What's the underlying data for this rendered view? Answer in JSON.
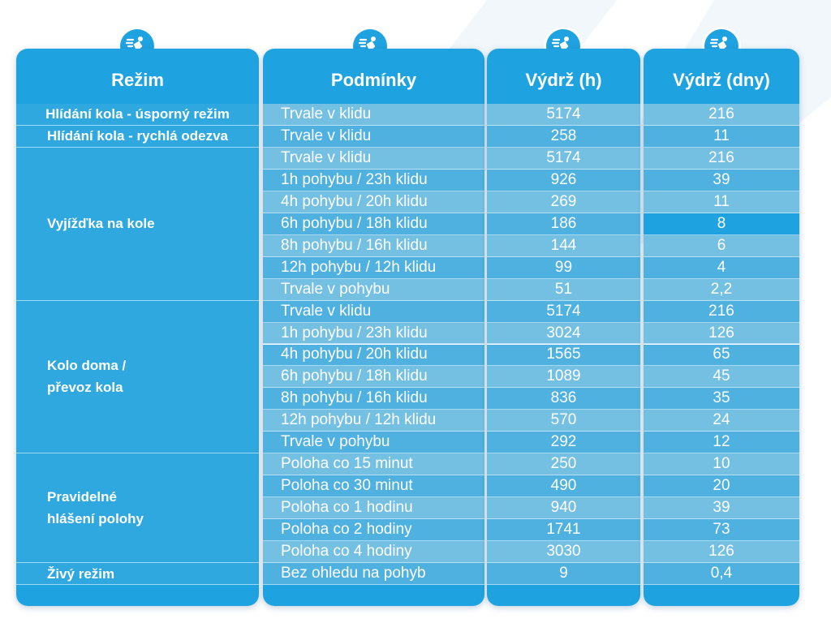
{
  "headers": {
    "mode": "Režim",
    "conditions": "Podmínky",
    "endurance_hours": "Výdrž (h)",
    "endurance_days": "Výdrž (dny)"
  },
  "header_icon": "bike-rider-icon",
  "colors": {
    "header_blue": "#1fa3e0",
    "row_light": "#74c0e3",
    "row_mid": "#4fb1df",
    "mode_cell": "#2ea8df"
  },
  "modes": [
    {
      "lines": [
        "Hlídání kola - úsporný režim"
      ],
      "rows": 1,
      "align": "center"
    },
    {
      "lines": [
        "Hlídání kola - rychlá odezva"
      ],
      "rows": 1,
      "align": "center"
    },
    {
      "lines": [
        "Vyjížďka na kole"
      ],
      "rows": 7,
      "align": "left"
    },
    {
      "lines": [
        "Kolo doma /",
        "převoz kola"
      ],
      "rows": 7,
      "align": "left"
    },
    {
      "lines": [
        "Pravidelné",
        "hlášení polohy"
      ],
      "rows": 5,
      "align": "left"
    },
    {
      "lines": [
        "Živý režim"
      ],
      "rows": 1,
      "align": "left"
    }
  ],
  "rows": [
    {
      "condition": "Trvale v klidu",
      "hours": "5174",
      "days": "216"
    },
    {
      "condition": "Trvale v klidu",
      "hours": "258",
      "days": "11"
    },
    {
      "condition": "Trvale v klidu",
      "hours": "5174",
      "days": "216"
    },
    {
      "condition": "1h pohybu / 23h klidu",
      "hours": "926",
      "days": "39"
    },
    {
      "condition": "4h pohybu / 20h klidu",
      "hours": "269",
      "days": "11"
    },
    {
      "condition": "6h pohybu / 18h klidu",
      "hours": "186",
      "days": "8",
      "highlight_days": true
    },
    {
      "condition": "8h pohybu / 16h klidu",
      "hours": "144",
      "days": "6"
    },
    {
      "condition": "12h pohybu / 12h klidu",
      "hours": "99",
      "days": "4"
    },
    {
      "condition": "Trvale v pohybu",
      "hours": "51",
      "days": "2,2"
    },
    {
      "condition": "Trvale v klidu",
      "hours": "5174",
      "days": "216"
    },
    {
      "condition": "1h pohybu / 23h klidu",
      "hours": "3024",
      "days": "126"
    },
    {
      "condition": "4h pohybu / 20h klidu",
      "hours": "1565",
      "days": "65"
    },
    {
      "condition": "6h pohybu / 18h klidu",
      "hours": "1089",
      "days": "45"
    },
    {
      "condition": "8h pohybu / 16h klidu",
      "hours": "836",
      "days": "35"
    },
    {
      "condition": "12h pohybu / 12h klidu",
      "hours": "570",
      "days": "24"
    },
    {
      "condition": "Trvale v pohybu",
      "hours": "292",
      "days": "12"
    },
    {
      "condition": "Poloha co 15 minut",
      "hours": "250",
      "days": "10"
    },
    {
      "condition": "Poloha co 30 minut",
      "hours": "490",
      "days": "20"
    },
    {
      "condition": "Poloha co 1 hodinu",
      "hours": "940",
      "days": "39"
    },
    {
      "condition": "Poloha co 2 hodiny",
      "hours": "1741",
      "days": "73"
    },
    {
      "condition": "Poloha co 4 hodiny",
      "hours": "3030",
      "days": "126"
    },
    {
      "condition": "Bez ohledu na pohyb",
      "hours": "9",
      "days": "0,4"
    }
  ]
}
